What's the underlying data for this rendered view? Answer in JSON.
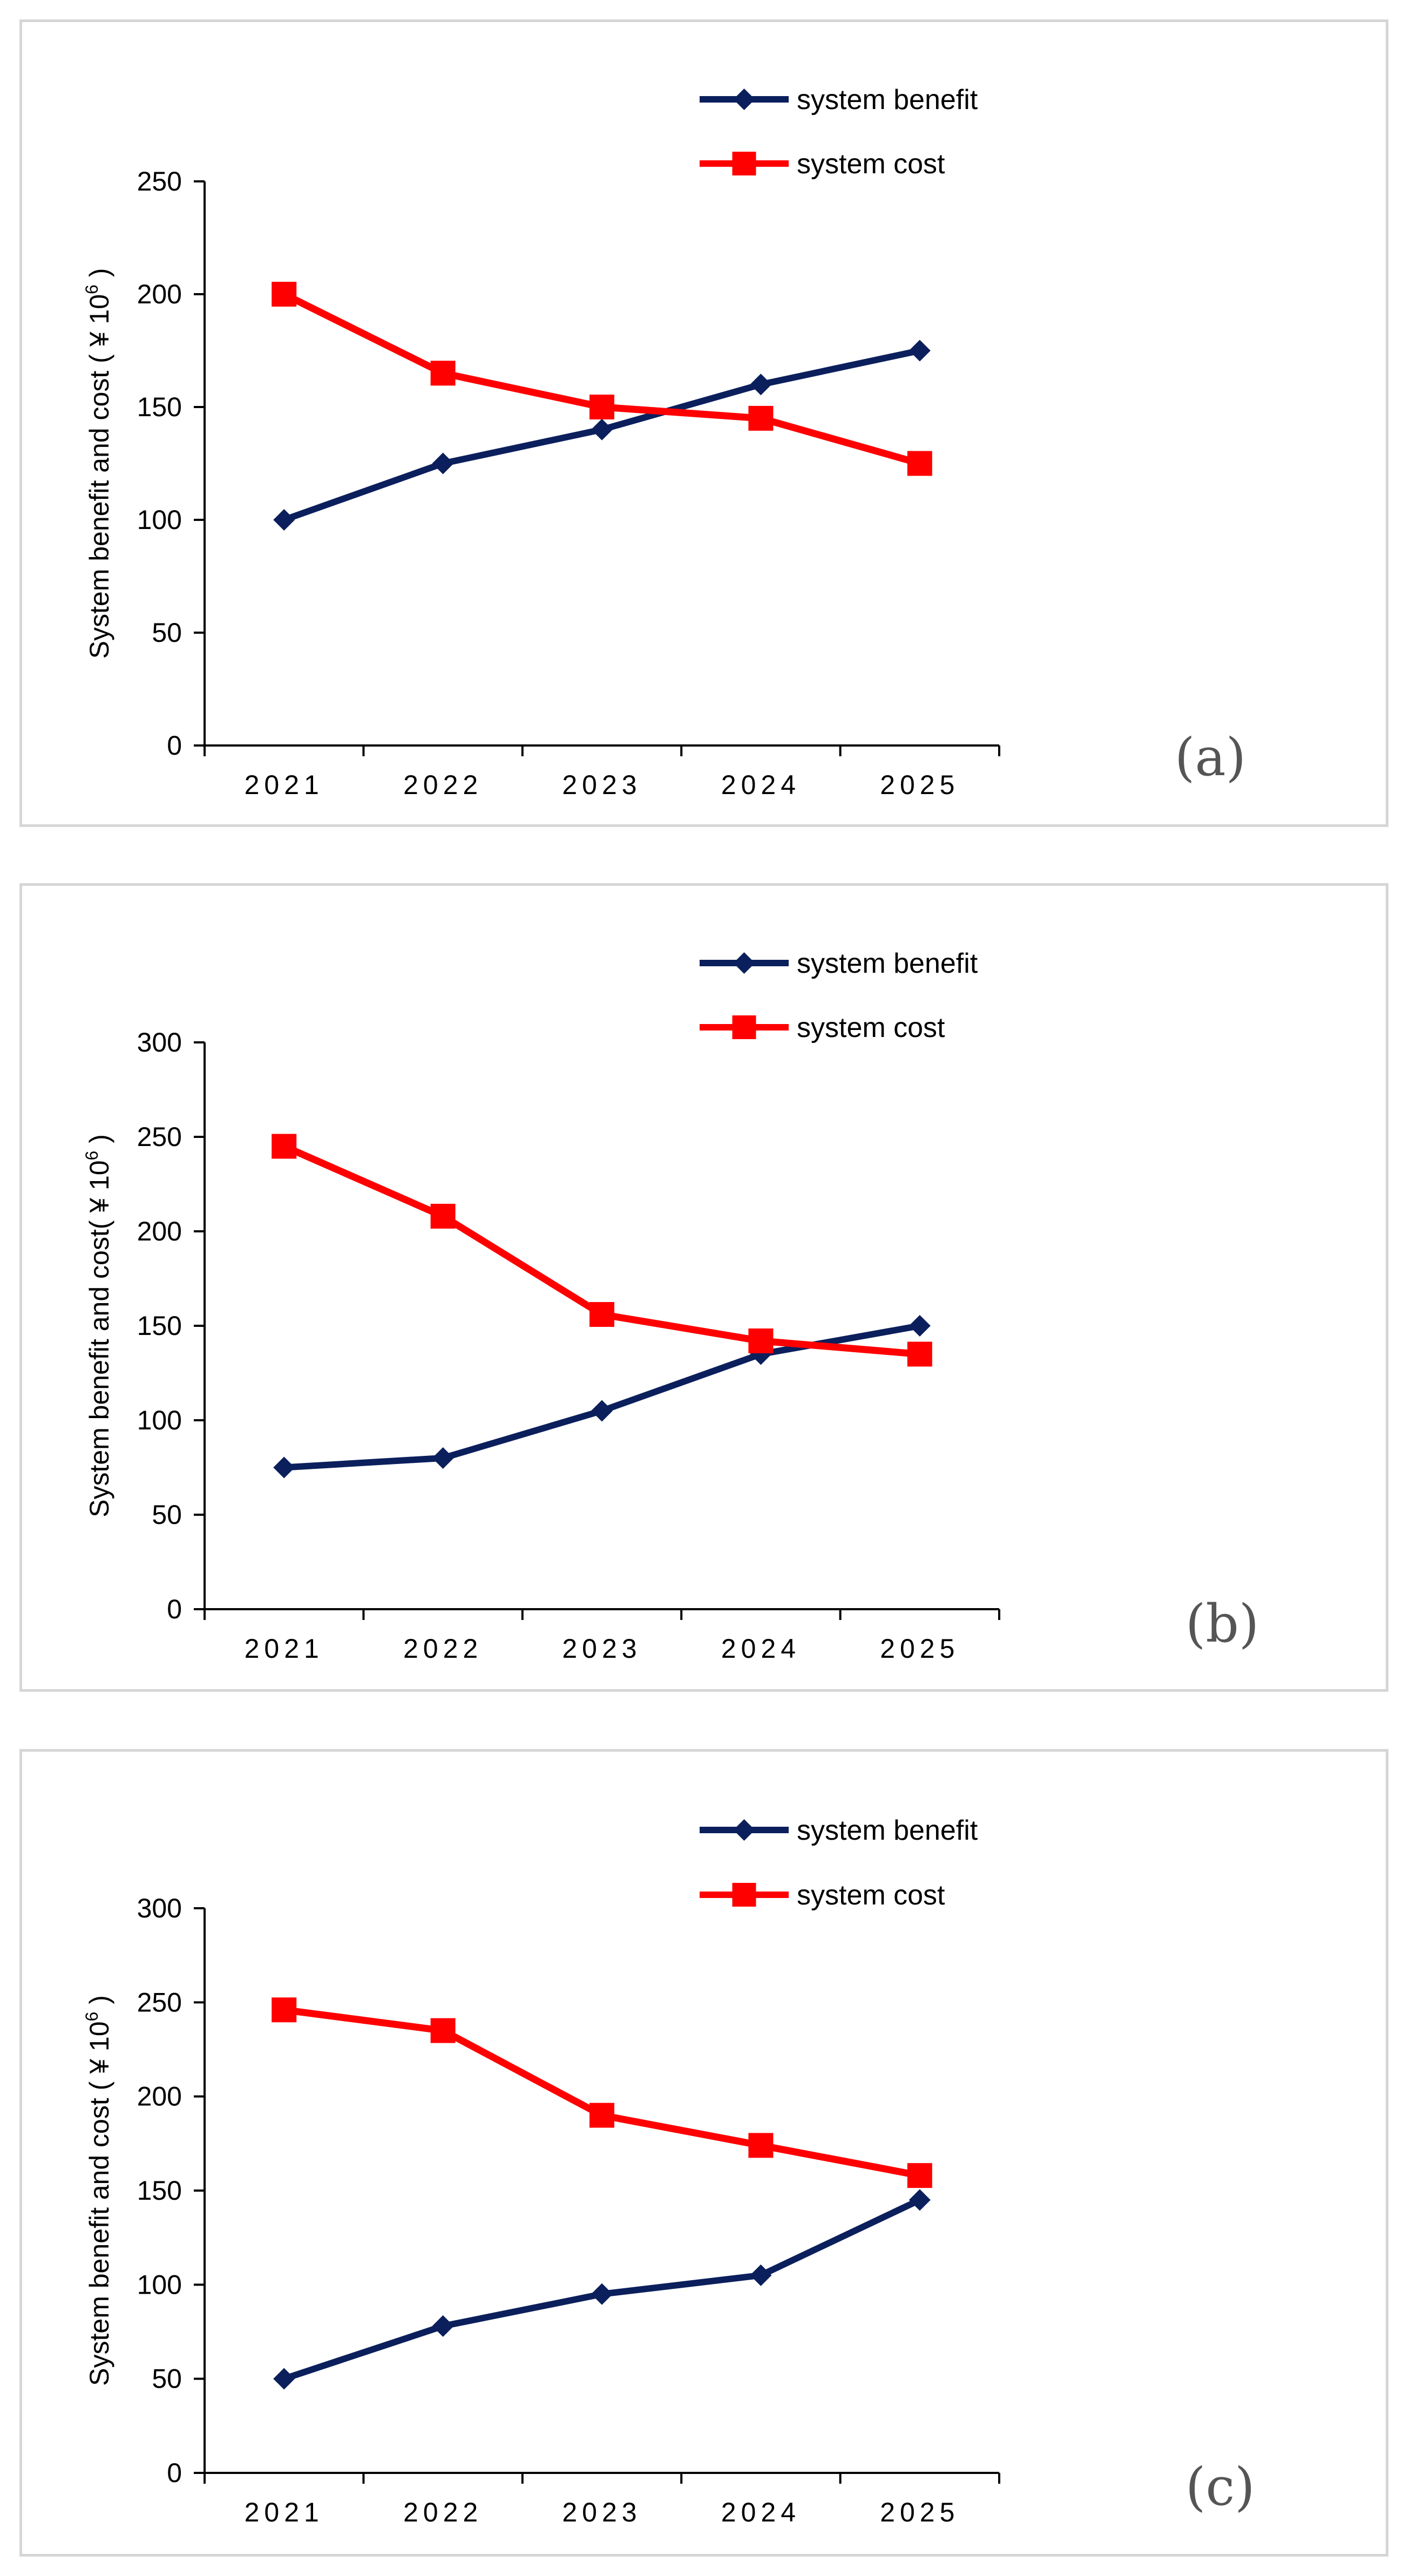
{
  "colors": {
    "benefit": "#0b1f5c",
    "cost": "#ff0000",
    "axis": "#000000",
    "border": "#d6d6d6"
  },
  "chart_data": [
    {
      "type": "line",
      "panel_label": "(a)",
      "categories": [
        "2021",
        "2022",
        "2023",
        "2024",
        "2025"
      ],
      "ylabel": "System benefit and cost ( ¥ 10",
      "ylabel_sup": "6",
      "ylabel_close": ")",
      "ylim": [
        0,
        250
      ],
      "yticks": [
        0,
        50,
        100,
        150,
        200,
        250
      ],
      "grid": false,
      "legend_position": "top-right",
      "series": [
        {
          "name": "system benefit",
          "marker": "diamond",
          "values": [
            100,
            125,
            140,
            160,
            175
          ]
        },
        {
          "name": "system cost",
          "marker": "square",
          "values": [
            200,
            165,
            150,
            145,
            125
          ]
        }
      ]
    },
    {
      "type": "line",
      "panel_label": "(b)",
      "categories": [
        "2021",
        "2022",
        "2023",
        "2024",
        "2025"
      ],
      "ylabel": "System benefit and cost( ¥ 10",
      "ylabel_sup": "6",
      "ylabel_close": ")",
      "ylim": [
        0,
        300
      ],
      "yticks": [
        0,
        50,
        100,
        150,
        200,
        250,
        300
      ],
      "grid": false,
      "legend_position": "top-right",
      "series": [
        {
          "name": "system benefit",
          "marker": "diamond",
          "values": [
            75,
            80,
            105,
            135,
            150
          ]
        },
        {
          "name": "system cost",
          "marker": "square",
          "values": [
            245,
            208,
            156,
            142,
            135
          ]
        }
      ]
    },
    {
      "type": "line",
      "panel_label": "(c)",
      "categories": [
        "2021",
        "2022",
        "2023",
        "2024",
        "2025"
      ],
      "ylabel": "System benefit and cost ( ¥ 10",
      "ylabel_sup": "6",
      "ylabel_close": ")",
      "ylim": [
        0,
        300
      ],
      "yticks": [
        0,
        50,
        100,
        150,
        200,
        250,
        300
      ],
      "grid": false,
      "legend_position": "top-right",
      "series": [
        {
          "name": "system benefit",
          "marker": "diamond",
          "values": [
            50,
            78,
            95,
            105,
            145
          ]
        },
        {
          "name": "system cost",
          "marker": "square",
          "values": [
            246,
            235,
            190,
            174,
            158
          ]
        }
      ]
    }
  ]
}
